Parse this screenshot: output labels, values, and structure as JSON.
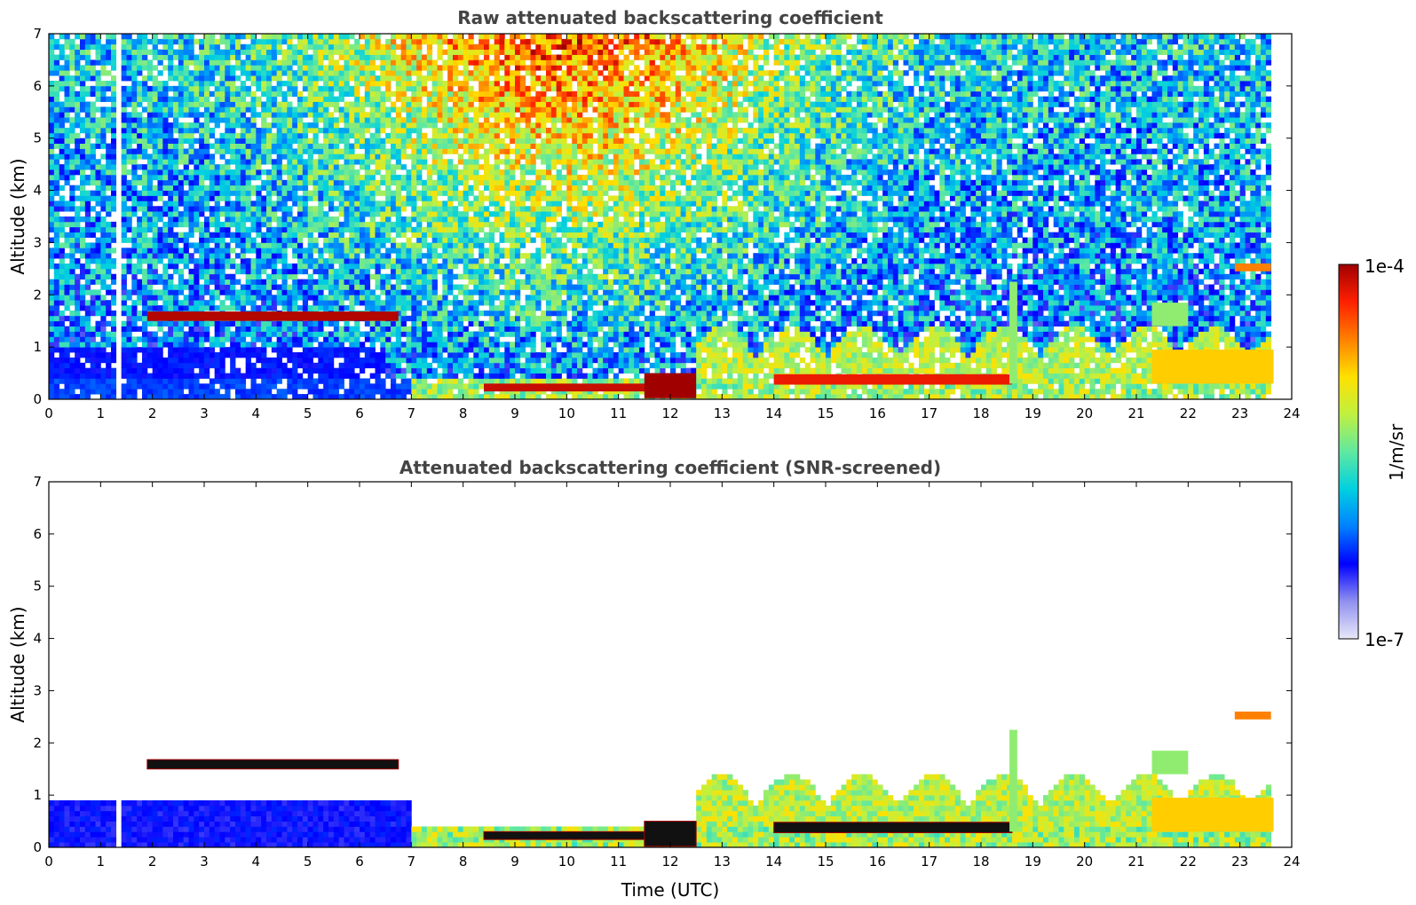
{
  "chart_data": [
    {
      "type": "heatmap",
      "title": "Raw attenuated backscattering coefficient",
      "ylabel": "Altitude (km)",
      "xlabel": "",
      "xlim": [
        0,
        24
      ],
      "ylim": [
        0,
        7
      ],
      "xticks": [
        "0",
        "1",
        "2",
        "3",
        "4",
        "5",
        "6",
        "7",
        "8",
        "9",
        "10",
        "11",
        "12",
        "13",
        "14",
        "15",
        "16",
        "17",
        "18",
        "19",
        "20",
        "21",
        "22",
        "23",
        "24"
      ],
      "yticks": [
        "0",
        "1",
        "2",
        "3",
        "4",
        "5",
        "6",
        "7"
      ],
      "screened": false,
      "data_end_hour": 23.65,
      "gap_hour": 1.33,
      "layers": [
        {
          "x": [
            1.9,
            6.75
          ],
          "y": [
            1.5,
            1.68
          ],
          "level": 0.98
        },
        {
          "x": [
            8.4,
            11.6
          ],
          "y": [
            0.15,
            0.3
          ],
          "level": 0.96
        },
        {
          "x": [
            11.5,
            12.5
          ],
          "y": [
            0.02,
            0.5
          ],
          "level": 1.0
        },
        {
          "x": [
            14.0,
            18.6
          ],
          "y": [
            0.28,
            0.48
          ],
          "level": 0.92
        },
        {
          "x": [
            18.55,
            18.7
          ],
          "y": [
            0.3,
            2.25
          ],
          "level": 0.55
        },
        {
          "x": [
            21.3,
            23.65
          ],
          "y": [
            0.3,
            0.95
          ],
          "level": 0.72
        },
        {
          "x": [
            22.9,
            23.6
          ],
          "y": [
            2.45,
            2.6
          ],
          "level": 0.8
        },
        {
          "x": [
            21.3,
            22.0
          ],
          "y": [
            1.4,
            1.85
          ],
          "level": 0.55
        }
      ]
    },
    {
      "type": "heatmap",
      "title": "Attenuated backscattering coefficient (SNR-screened)",
      "ylabel": "Altitude (km)",
      "xlabel": "Time (UTC)",
      "xlim": [
        0,
        24
      ],
      "ylim": [
        0,
        7
      ],
      "xticks": [
        "0",
        "1",
        "2",
        "3",
        "4",
        "5",
        "6",
        "7",
        "8",
        "9",
        "10",
        "11",
        "12",
        "13",
        "14",
        "15",
        "16",
        "17",
        "18",
        "19",
        "20",
        "21",
        "22",
        "23",
        "24"
      ],
      "yticks": [
        "0",
        "1",
        "2",
        "3",
        "4",
        "5",
        "6",
        "7"
      ],
      "screened": true,
      "data_end_hour": 23.65,
      "gap_hour": 1.33,
      "layers": [
        {
          "x": [
            1.9,
            6.75
          ],
          "y": [
            1.5,
            1.68
          ],
          "level": 1.0
        },
        {
          "x": [
            8.4,
            11.6
          ],
          "y": [
            0.15,
            0.3
          ],
          "level": 0.96
        },
        {
          "x": [
            11.5,
            12.5
          ],
          "y": [
            0.02,
            0.5
          ],
          "level": 1.0
        },
        {
          "x": [
            14.0,
            18.6
          ],
          "y": [
            0.28,
            0.48
          ],
          "level": 0.92
        },
        {
          "x": [
            18.55,
            18.7
          ],
          "y": [
            0.3,
            2.25
          ],
          "level": 0.55
        },
        {
          "x": [
            21.3,
            23.65
          ],
          "y": [
            0.3,
            0.95
          ],
          "level": 0.72
        },
        {
          "x": [
            22.9,
            23.6
          ],
          "y": [
            2.45,
            2.6
          ],
          "level": 0.8
        },
        {
          "x": [
            21.3,
            22.0
          ],
          "y": [
            1.4,
            1.85
          ],
          "level": 0.55
        }
      ]
    }
  ],
  "colorbar": {
    "max_label": "1e-4",
    "min_label": "1e-7",
    "label": "1/m/sr",
    "colormap": [
      "#e8e8f8",
      "#9090f0",
      "#0000ff",
      "#0080ff",
      "#00d0e0",
      "#60e8a0",
      "#c0f040",
      "#ffe000",
      "#ff8000",
      "#ff2000",
      "#a00000"
    ]
  }
}
